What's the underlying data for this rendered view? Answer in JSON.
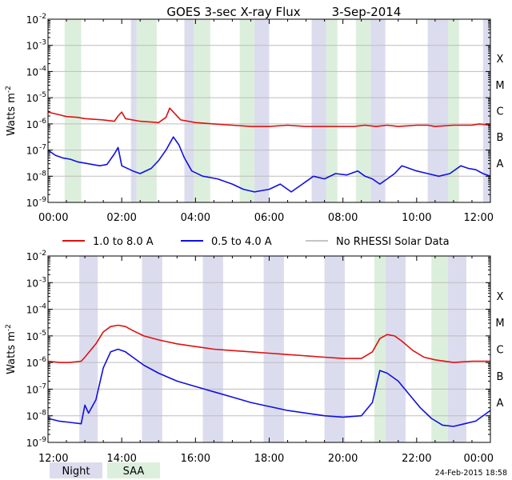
{
  "title": "GOES 3-sec X-ray Flux",
  "date": "3-Sep-2014",
  "timestamp": "24-Feb-2015 18:58",
  "ylabel_main": "Watts m",
  "ylabel_exp": "-2",
  "ytick_exponents": [
    "-2",
    "-3",
    "-4",
    "-5",
    "-6",
    "-7",
    "-8",
    "-9"
  ],
  "flare_classes": [
    "X",
    "M",
    "C",
    "B",
    "A"
  ],
  "legend": {
    "long": "1.0 to 8.0 A",
    "short": "0.5 to 4.0 A",
    "nodata": "No RHESSI Solar Data"
  },
  "bottom_legend": {
    "night": "Night",
    "saa": "SAA"
  },
  "colors": {
    "long": "#e01010",
    "short": "#1010e0",
    "nodata": "#8a8a8a",
    "night": "#dcdcef",
    "saa": "#dcefdc",
    "grid": "#bdbdbd"
  },
  "chart_data": [
    {
      "type": "line",
      "panel": "top",
      "xlim": [
        0,
        12
      ],
      "ylim_log10": [
        -9,
        -2
      ],
      "xtick_labels": [
        "00:00",
        "02:00",
        "04:00",
        "06:00",
        "08:00",
        "10:00",
        "12:00"
      ],
      "night": [
        [
          2.25,
          2.4
        ],
        [
          3.7,
          3.95
        ],
        [
          5.6,
          6.0
        ],
        [
          7.15,
          7.55
        ],
        [
          8.75,
          9.15
        ],
        [
          10.3,
          10.85
        ],
        [
          11.8,
          12.0
        ]
      ],
      "saa": [
        [
          0.45,
          0.9
        ],
        [
          2.4,
          2.95
        ],
        [
          3.95,
          4.4
        ],
        [
          5.2,
          5.6
        ],
        [
          7.55,
          7.85
        ],
        [
          8.35,
          8.75
        ],
        [
          10.85,
          11.15
        ]
      ],
      "series": [
        {
          "name": "1.0 to 8.0 A",
          "points": [
            [
              0,
              -5.55
            ],
            [
              0.3,
              -5.65
            ],
            [
              0.5,
              -5.72
            ],
            [
              0.8,
              -5.75
            ],
            [
              1.0,
              -5.8
            ],
            [
              1.5,
              -5.85
            ],
            [
              1.8,
              -5.9
            ],
            [
              1.9,
              -5.7
            ],
            [
              2.0,
              -5.55
            ],
            [
              2.1,
              -5.8
            ],
            [
              2.5,
              -5.9
            ],
            [
              3.0,
              -5.95
            ],
            [
              3.2,
              -5.75
            ],
            [
              3.3,
              -5.4
            ],
            [
              3.4,
              -5.55
            ],
            [
              3.6,
              -5.85
            ],
            [
              4.0,
              -5.95
            ],
            [
              4.5,
              -6.0
            ],
            [
              5.0,
              -6.05
            ],
            [
              5.5,
              -6.1
            ],
            [
              6.0,
              -6.1
            ],
            [
              6.5,
              -6.05
            ],
            [
              7.0,
              -6.1
            ],
            [
              7.5,
              -6.1
            ],
            [
              8.0,
              -6.1
            ],
            [
              8.3,
              -6.1
            ],
            [
              8.6,
              -6.05
            ],
            [
              8.9,
              -6.1
            ],
            [
              9.2,
              -6.05
            ],
            [
              9.5,
              -6.1
            ],
            [
              10.0,
              -6.05
            ],
            [
              10.3,
              -6.05
            ],
            [
              10.5,
              -6.1
            ],
            [
              11.0,
              -6.05
            ],
            [
              11.5,
              -6.05
            ],
            [
              11.7,
              -6.0
            ],
            [
              12.0,
              -6.05
            ]
          ]
        },
        {
          "name": "0.5 to 4.0 A",
          "points": [
            [
              0,
              -7.0
            ],
            [
              0.2,
              -7.2
            ],
            [
              0.4,
              -7.3
            ],
            [
              0.6,
              -7.35
            ],
            [
              0.8,
              -7.45
            ],
            [
              1.0,
              -7.5
            ],
            [
              1.4,
              -7.6
            ],
            [
              1.6,
              -7.55
            ],
            [
              1.8,
              -7.15
            ],
            [
              1.9,
              -6.9
            ],
            [
              2.0,
              -7.6
            ],
            [
              2.3,
              -7.8
            ],
            [
              2.5,
              -7.9
            ],
            [
              2.8,
              -7.7
            ],
            [
              3.0,
              -7.4
            ],
            [
              3.2,
              -7.0
            ],
            [
              3.4,
              -6.5
            ],
            [
              3.55,
              -6.8
            ],
            [
              3.7,
              -7.3
            ],
            [
              3.9,
              -7.8
            ],
            [
              4.2,
              -8.0
            ],
            [
              4.6,
              -8.1
            ],
            [
              5.0,
              -8.3
            ],
            [
              5.3,
              -8.5
            ],
            [
              5.6,
              -8.6
            ],
            [
              6.0,
              -8.5
            ],
            [
              6.3,
              -8.3
            ],
            [
              6.6,
              -8.6
            ],
            [
              6.9,
              -8.3
            ],
            [
              7.2,
              -8.0
            ],
            [
              7.5,
              -8.1
            ],
            [
              7.8,
              -7.9
            ],
            [
              8.1,
              -7.95
            ],
            [
              8.4,
              -7.8
            ],
            [
              8.6,
              -8.0
            ],
            [
              8.8,
              -8.1
            ],
            [
              9.0,
              -8.3
            ],
            [
              9.2,
              -8.1
            ],
            [
              9.4,
              -7.9
            ],
            [
              9.6,
              -7.6
            ],
            [
              9.8,
              -7.7
            ],
            [
              10.0,
              -7.8
            ],
            [
              10.3,
              -7.9
            ],
            [
              10.6,
              -8.0
            ],
            [
              10.9,
              -7.9
            ],
            [
              11.2,
              -7.6
            ],
            [
              11.4,
              -7.7
            ],
            [
              11.6,
              -7.75
            ],
            [
              11.8,
              -7.9
            ],
            [
              12.0,
              -8.0
            ]
          ]
        }
      ]
    },
    {
      "type": "line",
      "panel": "bottom",
      "xlim": [
        12,
        24
      ],
      "ylim_log10": [
        -9,
        -2
      ],
      "xtick_labels": [
        "12:00",
        "14:00",
        "16:00",
        "18:00",
        "20:00",
        "22:00",
        "00:00"
      ],
      "night": [
        [
          12.85,
          13.35
        ],
        [
          14.55,
          15.1
        ],
        [
          16.2,
          16.75
        ],
        [
          17.85,
          18.4
        ],
        [
          19.5,
          20.05
        ],
        [
          21.15,
          21.7
        ],
        [
          22.85,
          23.35
        ]
      ],
      "saa": [
        [
          20.85,
          21.15
        ],
        [
          22.4,
          22.85
        ]
      ],
      "series": [
        {
          "name": "1.0 to 8.0 A",
          "points": [
            [
              12,
              -5.95
            ],
            [
              12.3,
              -6.0
            ],
            [
              12.6,
              -6.0
            ],
            [
              12.9,
              -5.95
            ],
            [
              13.0,
              -5.8
            ],
            [
              13.3,
              -5.3
            ],
            [
              13.5,
              -4.85
            ],
            [
              13.7,
              -4.65
            ],
            [
              13.9,
              -4.6
            ],
            [
              14.1,
              -4.65
            ],
            [
              14.3,
              -4.8
            ],
            [
              14.6,
              -5.0
            ],
            [
              15.0,
              -5.15
            ],
            [
              15.5,
              -5.3
            ],
            [
              16.0,
              -5.4
            ],
            [
              16.5,
              -5.5
            ],
            [
              17.0,
              -5.55
            ],
            [
              17.5,
              -5.6
            ],
            [
              18.0,
              -5.65
            ],
            [
              18.5,
              -5.7
            ],
            [
              19.0,
              -5.75
            ],
            [
              19.5,
              -5.8
            ],
            [
              20.0,
              -5.85
            ],
            [
              20.5,
              -5.85
            ],
            [
              20.8,
              -5.6
            ],
            [
              21.0,
              -5.1
            ],
            [
              21.2,
              -4.95
            ],
            [
              21.4,
              -5.0
            ],
            [
              21.6,
              -5.2
            ],
            [
              21.9,
              -5.55
            ],
            [
              22.2,
              -5.8
            ],
            [
              22.5,
              -5.9
            ],
            [
              23.0,
              -6.0
            ],
            [
              23.5,
              -5.95
            ],
            [
              24.0,
              -5.95
            ]
          ]
        },
        {
          "name": "0.5 to 4.0 A",
          "points": [
            [
              12,
              -8.1
            ],
            [
              12.3,
              -8.2
            ],
            [
              12.6,
              -8.25
            ],
            [
              12.9,
              -8.3
            ],
            [
              13.0,
              -7.6
            ],
            [
              13.1,
              -7.9
            ],
            [
              13.3,
              -7.4
            ],
            [
              13.5,
              -6.2
            ],
            [
              13.7,
              -5.6
            ],
            [
              13.9,
              -5.5
            ],
            [
              14.1,
              -5.6
            ],
            [
              14.3,
              -5.8
            ],
            [
              14.6,
              -6.1
            ],
            [
              15.0,
              -6.4
            ],
            [
              15.5,
              -6.7
            ],
            [
              16.0,
              -6.9
            ],
            [
              16.5,
              -7.1
            ],
            [
              17.0,
              -7.3
            ],
            [
              17.5,
              -7.5
            ],
            [
              18.0,
              -7.65
            ],
            [
              18.5,
              -7.8
            ],
            [
              19.0,
              -7.9
            ],
            [
              19.5,
              -8.0
            ],
            [
              20.0,
              -8.05
            ],
            [
              20.5,
              -8.0
            ],
            [
              20.8,
              -7.5
            ],
            [
              21.0,
              -6.3
            ],
            [
              21.2,
              -6.4
            ],
            [
              21.5,
              -6.7
            ],
            [
              21.8,
              -7.2
            ],
            [
              22.1,
              -7.7
            ],
            [
              22.4,
              -8.1
            ],
            [
              22.7,
              -8.35
            ],
            [
              23.0,
              -8.4
            ],
            [
              23.3,
              -8.3
            ],
            [
              23.6,
              -8.2
            ],
            [
              24.0,
              -7.8
            ]
          ]
        }
      ]
    }
  ]
}
